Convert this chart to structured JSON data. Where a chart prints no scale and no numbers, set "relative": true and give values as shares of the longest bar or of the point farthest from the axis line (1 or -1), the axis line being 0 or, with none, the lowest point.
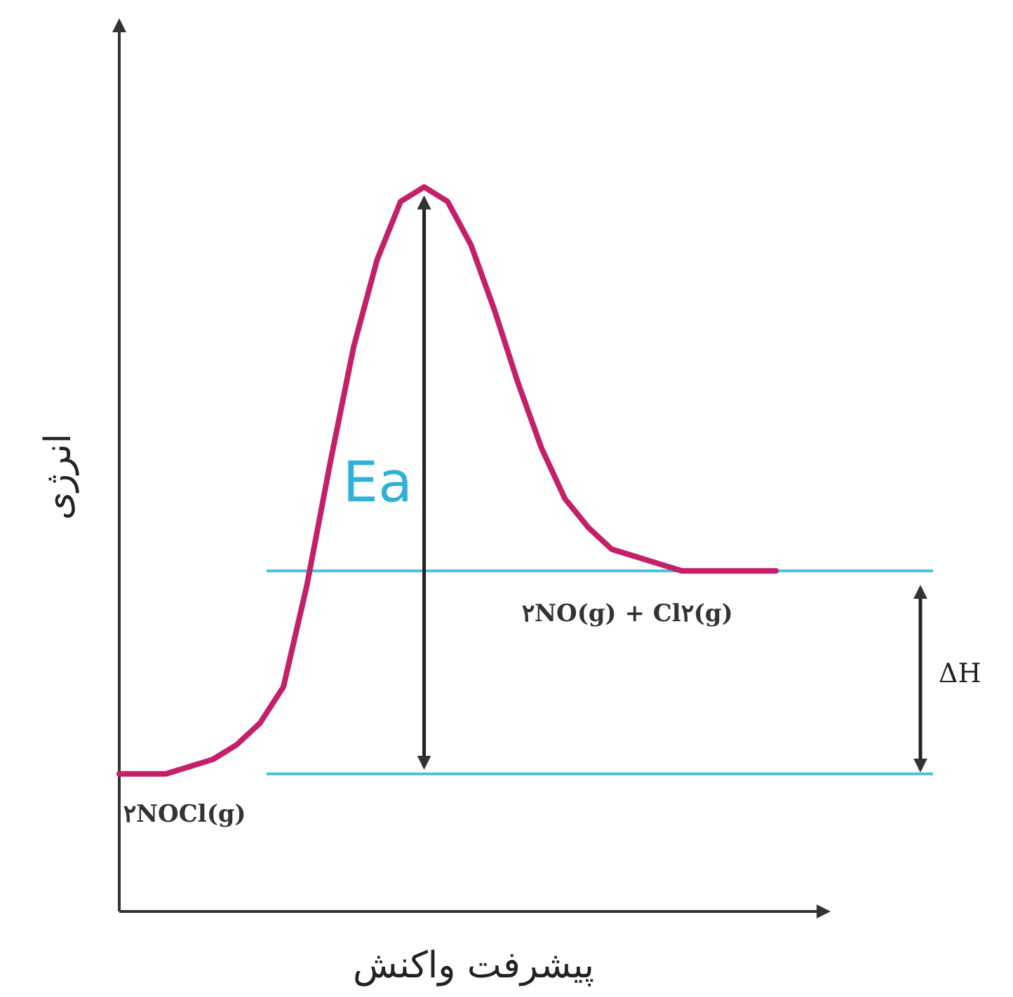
{
  "chart_data": {
    "type": "line",
    "relative": true,
    "xlabel": "پیشرفت واکنش",
    "ylabel": "انرژی",
    "categories": [
      null,
      null,
      null,
      null,
      null,
      null,
      null,
      null,
      null,
      null,
      null,
      null,
      null,
      null,
      null,
      null,
      null,
      null,
      null,
      null,
      null,
      null,
      null,
      null,
      null,
      null,
      null,
      null,
      null
    ],
    "series": [
      {
        "color": "#c4206a",
        "values": [
          0.19,
          0.19,
          0.19,
          0.2,
          0.21,
          0.23,
          0.26,
          0.31,
          0.45,
          0.62,
          0.78,
          0.9,
          0.98,
          1,
          0.98,
          0.92,
          0.83,
          0.73,
          0.64,
          0.57,
          0.53,
          0.5,
          0.49,
          0.48,
          0.47,
          0.47,
          0.47,
          0.47,
          0.47
        ]
      }
    ],
    "ref_lines": [
      {
        "axis": "y",
        "value": 0.19,
        "color": "#49bfe0"
      },
      {
        "axis": "y",
        "value": 0.47,
        "color": "#49bfe0"
      }
    ],
    "annotations": [
      "Ea",
      "ΔH",
      "۲NOCl(g)",
      "۲NO(g) + Cl۲(g)"
    ],
    "marker": "none",
    "line_style": "solid"
  }
}
